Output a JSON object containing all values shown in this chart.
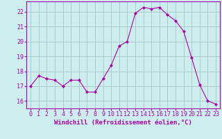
{
  "x": [
    0,
    1,
    2,
    3,
    4,
    5,
    6,
    7,
    8,
    9,
    10,
    11,
    12,
    13,
    14,
    15,
    16,
    17,
    18,
    19,
    20,
    21,
    22,
    23
  ],
  "y": [
    17.0,
    17.7,
    17.5,
    17.4,
    17.0,
    17.4,
    17.4,
    16.6,
    16.6,
    17.5,
    18.4,
    19.7,
    20.0,
    21.9,
    22.3,
    22.2,
    22.3,
    21.8,
    21.4,
    20.7,
    18.9,
    17.1,
    16.0,
    15.8
  ],
  "line_color": "#aa00aa",
  "marker": "D",
  "marker_size": 2,
  "bg_color": "#cceeee",
  "grid_color": "#aacccc",
  "xlabel": "Windchill (Refroidissement éolien,°C)",
  "ylabel_ticks": [
    16,
    17,
    18,
    19,
    20,
    21,
    22
  ],
  "xtick_labels": [
    "0",
    "1",
    "2",
    "3",
    "4",
    "5",
    "6",
    "7",
    "8",
    "9",
    "10",
    "11",
    "12",
    "13",
    "14",
    "15",
    "16",
    "17",
    "18",
    "19",
    "20",
    "21",
    "22",
    "23"
  ],
  "xlim": [
    -0.5,
    23.5
  ],
  "ylim": [
    15.5,
    22.7
  ],
  "xlabel_fontsize": 6.5,
  "tick_fontsize": 6,
  "label_color": "#aa00aa",
  "linewidth": 0.8
}
